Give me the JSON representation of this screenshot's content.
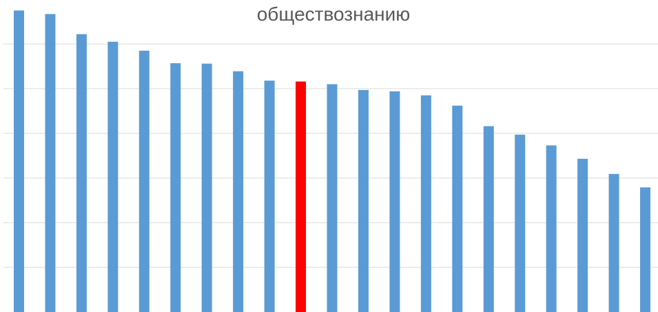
{
  "chart_data": {
    "type": "bar",
    "title": "обществознанию",
    "xlabel": "",
    "ylabel": "",
    "ylim": [
      0,
      7
    ],
    "grid": true,
    "legend": "none",
    "bar_color": "#5B9BD5",
    "highlight_color": "#FF0000",
    "gridline_color": "#D9D9D9",
    "highlight_index": 9,
    "series": [
      {
        "values": [
          6.75,
          6.67,
          6.22,
          6.05,
          5.85,
          5.57,
          5.56,
          5.39,
          5.18,
          5.16,
          5.1,
          4.97,
          4.94,
          4.85,
          4.62,
          4.16,
          3.97,
          3.73,
          3.43,
          3.09,
          2.79
        ]
      }
    ]
  }
}
